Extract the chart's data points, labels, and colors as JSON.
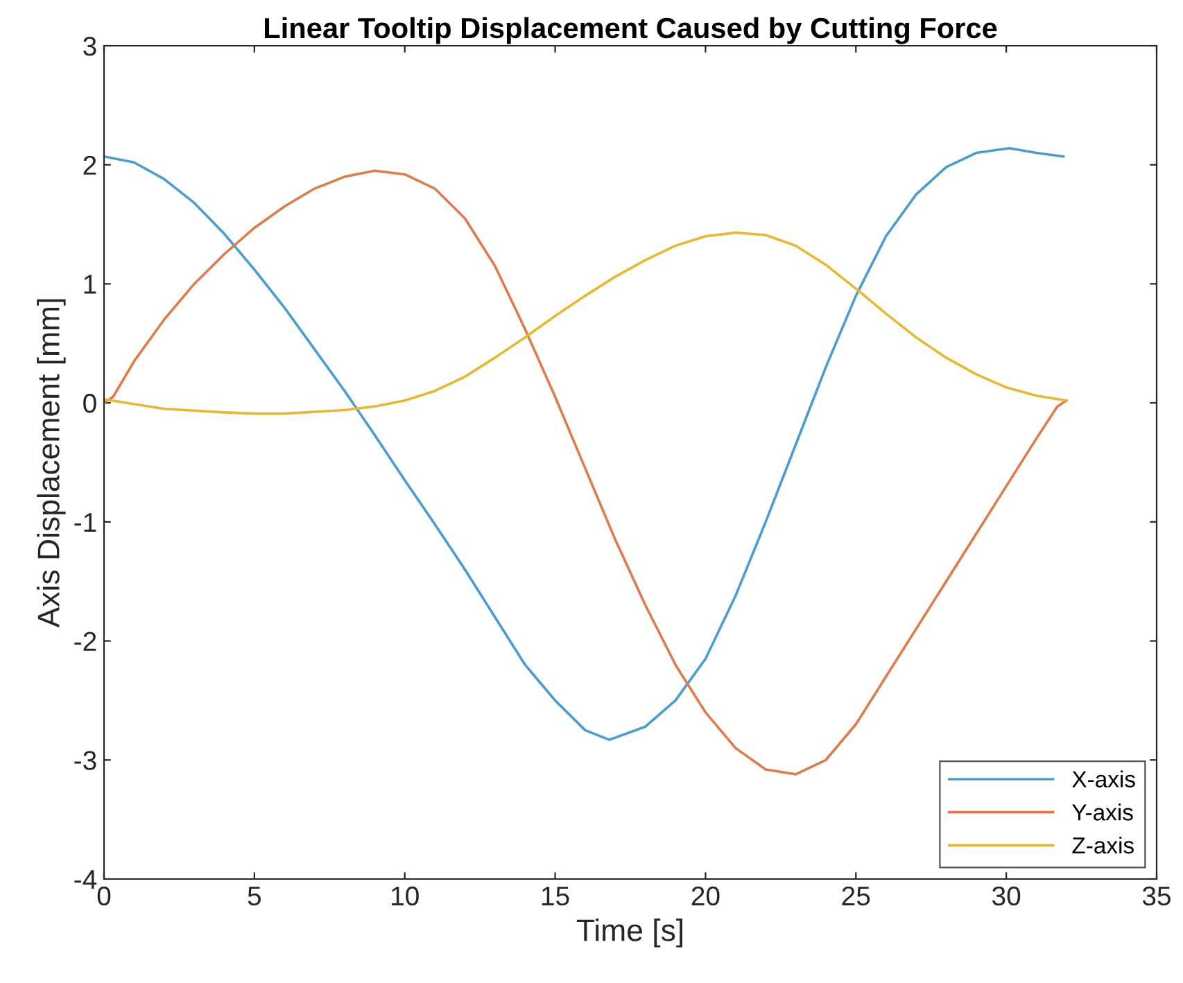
{
  "chart_data": {
    "type": "line",
    "title": "Linear Tooltip Displacement Caused by Cutting Force",
    "xlabel": "Time [s]",
    "ylabel": "Axis Displacement [mm]",
    "xlim": [
      0,
      35
    ],
    "ylim": [
      -4,
      3
    ],
    "xticks": [
      0,
      5,
      10,
      15,
      20,
      25,
      30,
      35
    ],
    "yticks": [
      -4,
      -3,
      -2,
      -1,
      0,
      1,
      2,
      3
    ],
    "grid": false,
    "legend": "bottom right",
    "series": [
      {
        "name": "X-axis",
        "color": "#4a9dd4",
        "x": [
          0,
          1,
          2,
          3,
          4,
          5,
          6,
          7,
          8,
          9,
          10,
          11,
          12,
          13,
          14,
          15,
          16,
          16.8,
          18,
          19,
          20,
          21,
          22,
          23,
          24,
          25,
          26,
          27,
          28,
          29,
          30.1,
          31,
          31.9
        ],
        "values": [
          2.07,
          2.02,
          1.88,
          1.68,
          1.42,
          1.12,
          0.8,
          0.45,
          0.1,
          -0.27,
          -0.65,
          -1.02,
          -1.4,
          -1.8,
          -2.2,
          -2.5,
          -2.75,
          -2.83,
          -2.72,
          -2.5,
          -2.15,
          -1.62,
          -1.0,
          -0.35,
          0.3,
          0.9,
          1.4,
          1.75,
          1.98,
          2.1,
          2.14,
          2.1,
          2.07
        ]
      },
      {
        "name": "Y-axis",
        "color": "#e07b4a",
        "x": [
          0,
          0.3,
          1,
          2,
          3,
          4,
          5,
          6,
          7,
          8,
          9,
          10,
          11,
          12,
          13,
          14,
          15,
          16,
          17,
          18,
          19,
          20,
          21,
          22,
          23,
          24,
          25,
          26,
          27,
          28,
          29,
          30,
          31,
          31.7,
          32
        ],
        "values": [
          0,
          0.05,
          0.35,
          0.7,
          1.0,
          1.25,
          1.47,
          1.65,
          1.8,
          1.9,
          1.95,
          1.92,
          1.8,
          1.55,
          1.15,
          0.62,
          0.05,
          -0.55,
          -1.15,
          -1.7,
          -2.2,
          -2.6,
          -2.9,
          -3.08,
          -3.12,
          -3.0,
          -2.7,
          -2.3,
          -1.9,
          -1.5,
          -1.1,
          -0.7,
          -0.3,
          -0.03,
          0.02
        ]
      },
      {
        "name": "Z-axis",
        "color": "#e8b830",
        "x": [
          0,
          2,
          4,
          5,
          6,
          8,
          9,
          10,
          11,
          12,
          13,
          14,
          15,
          16,
          17,
          18,
          19,
          20,
          21,
          22,
          23,
          24,
          25,
          26,
          27,
          28,
          29,
          30,
          31,
          32
        ],
        "values": [
          0.03,
          -0.05,
          -0.08,
          -0.09,
          -0.09,
          -0.06,
          -0.03,
          0.02,
          0.1,
          0.22,
          0.38,
          0.55,
          0.73,
          0.9,
          1.06,
          1.2,
          1.32,
          1.4,
          1.43,
          1.41,
          1.32,
          1.16,
          0.96,
          0.75,
          0.55,
          0.38,
          0.24,
          0.13,
          0.06,
          0.02
        ]
      }
    ]
  }
}
